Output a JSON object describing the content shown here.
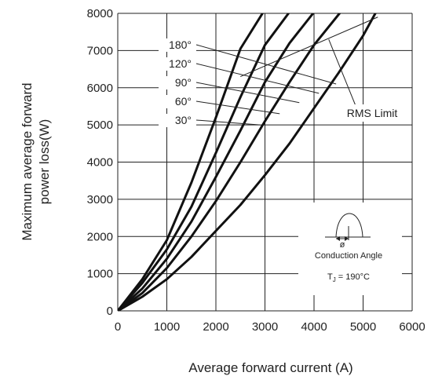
{
  "chart_data": {
    "type": "line",
    "title": "",
    "xlabel": "Average forward current (A)",
    "ylabel_line1": "Maximum average forward",
    "ylabel_line2": "power loss(W)",
    "xlim": [
      0,
      6000
    ],
    "ylim": [
      0,
      8000
    ],
    "x_ticks": [
      "0",
      "1000",
      "2000",
      "3000",
      "4000",
      "5000",
      "6000"
    ],
    "y_ticks": [
      "0",
      "1000",
      "2000",
      "3000",
      "4000",
      "5000",
      "6000",
      "7000",
      "8000"
    ],
    "grid": true,
    "series": [
      {
        "name": "180°",
        "x": [
          0,
          500,
          1000,
          1500,
          2000,
          2500,
          2950
        ],
        "y": [
          0,
          850,
          1900,
          3450,
          5200,
          7050,
          8000
        ]
      },
      {
        "name": "120°",
        "x": [
          0,
          500,
          1000,
          1500,
          2000,
          2500,
          3000,
          3480
        ],
        "y": [
          0,
          750,
          1650,
          2800,
          4250,
          5750,
          7150,
          8000
        ]
      },
      {
        "name": "90°",
        "x": [
          0,
          500,
          1000,
          1500,
          2000,
          2500,
          3000,
          3500,
          3980
        ],
        "y": [
          0,
          600,
          1400,
          2400,
          3600,
          4850,
          6150,
          7200,
          8000
        ]
      },
      {
        "name": "60°",
        "x": [
          0,
          500,
          1000,
          1500,
          2000,
          2500,
          3000,
          3500,
          4000,
          4520
        ],
        "y": [
          0,
          480,
          1150,
          2000,
          2950,
          4000,
          5100,
          6150,
          7150,
          8000
        ]
      },
      {
        "name": "30°",
        "x": [
          0,
          500,
          1000,
          1500,
          2000,
          2500,
          3000,
          3500,
          4000,
          4500,
          5000,
          5250
        ],
        "y": [
          0,
          380,
          850,
          1450,
          2150,
          2850,
          3650,
          4500,
          5450,
          6400,
          7400,
          8000
        ]
      }
    ],
    "rms_limit": {
      "label": "RMS Limit",
      "x": [
        2500,
        5300
      ],
      "y": [
        6300,
        7900
      ]
    },
    "annotations": {
      "conduction_angle": "Conduction Angle",
      "phi": "ø",
      "tj_prefix": "T",
      "tj_sub": "J",
      "tj_value": " = 190°C"
    }
  }
}
